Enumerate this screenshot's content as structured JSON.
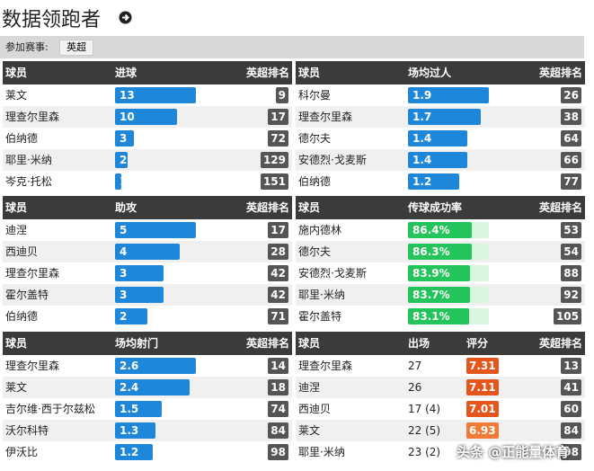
{
  "header": {
    "title": "数据领跑者"
  },
  "filter": {
    "label": "参加赛事:",
    "value": "英超"
  },
  "panels": [
    {
      "columns": [
        "球员",
        "进球",
        "英超排名"
      ],
      "rows": [
        {
          "player": "莱文",
          "value": 13,
          "rank": 9
        },
        {
          "player": "理查尔里森",
          "value": 10,
          "rank": 17
        },
        {
          "player": "伯纳德",
          "value": 3,
          "rank": 72
        },
        {
          "player": "耶里·米纳",
          "value": 2,
          "rank": 129
        },
        {
          "player": "岑克·托松",
          "value": 1,
          "rank": 151
        }
      ]
    },
    {
      "columns": [
        "球员",
        "场均过人",
        "英超排名"
      ],
      "rows": [
        {
          "player": "科尔曼",
          "value": 1.9,
          "rank": 26
        },
        {
          "player": "理查尔里森",
          "value": 1.7,
          "rank": 38
        },
        {
          "player": "德尔夫",
          "value": 1.4,
          "rank": 64
        },
        {
          "player": "安德烈·戈麦斯",
          "value": 1.4,
          "rank": 66
        },
        {
          "player": "伯纳德",
          "value": 1.2,
          "rank": 77
        }
      ]
    },
    {
      "columns": [
        "球员",
        "助攻",
        "英超排名"
      ],
      "rows": [
        {
          "player": "迪涅",
          "value": 5,
          "rank": 17
        },
        {
          "player": "西迪贝",
          "value": 4,
          "rank": 28
        },
        {
          "player": "理查尔里森",
          "value": 3,
          "rank": 42
        },
        {
          "player": "霍尔盖特",
          "value": 3,
          "rank": 42
        },
        {
          "player": "伯纳德",
          "value": 2,
          "rank": 71
        }
      ]
    },
    {
      "columns": [
        "球员",
        "传球成功率",
        "英超排名"
      ],
      "rows": [
        {
          "player": "施内德林",
          "value": 86.4,
          "value_label": "86.4%",
          "rank": 53
        },
        {
          "player": "德尔夫",
          "value": 86.3,
          "value_label": "86.3%",
          "rank": 54
        },
        {
          "player": "安德烈·戈麦斯",
          "value": 83.9,
          "value_label": "83.9%",
          "rank": 88
        },
        {
          "player": "耶里·米纳",
          "value": 83.7,
          "value_label": "83.7%",
          "rank": 92
        },
        {
          "player": "霍尔盖特",
          "value": 83.1,
          "value_label": "83.1%",
          "rank": 105
        }
      ]
    },
    {
      "columns": [
        "球员",
        "场均射门",
        "英超排名"
      ],
      "rows": [
        {
          "player": "理查尔里森",
          "value": 2.6,
          "rank": 14
        },
        {
          "player": "莱文",
          "value": 2.4,
          "rank": 18
        },
        {
          "player": "吉尔维·西于尔兹松",
          "value": 1.5,
          "rank": 74
        },
        {
          "player": "沃尔科特",
          "value": 1.3,
          "rank": 84
        },
        {
          "player": "伊沃比",
          "value": 1.2,
          "rank": 98
        }
      ]
    },
    {
      "columns": [
        "球员",
        "出场",
        "评分",
        "英超排名"
      ],
      "rows": [
        {
          "player": "理查尔里森",
          "apps": 27,
          "rating": 7.31,
          "rank": 13
        },
        {
          "player": "迪涅",
          "apps": 26,
          "rating": 7.11,
          "rank": 41
        },
        {
          "player": "西迪贝",
          "apps": "17 (4)",
          "rating": 7.01,
          "rank": 60
        },
        {
          "player": "莱文",
          "apps": "22 (5)",
          "rating": 6.93,
          "rank": 84
        },
        {
          "player": "耶里·米纳",
          "apps": "23 (2)",
          "rank": 98
        }
      ]
    }
  ],
  "watermark": "头条 @正能量体育"
}
